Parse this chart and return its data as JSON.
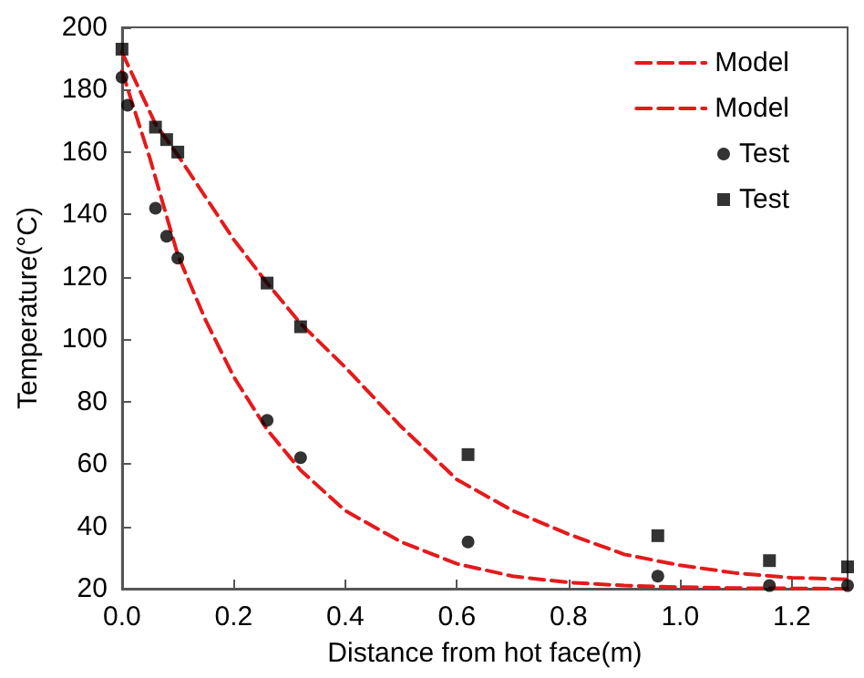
{
  "chart_data": {
    "type": "line",
    "xlabel": "Distance from hot face(m)",
    "ylabel": "Temperature(°C)",
    "xlim": [
      0,
      1.3
    ],
    "xticks": [
      {
        "value": 0,
        "label": "0.0"
      },
      0.2,
      0.4,
      0.6,
      0.8,
      {
        "value": 1,
        "label": "1.0"
      },
      1.2
    ],
    "ylim": [
      20,
      200
    ],
    "yticks": [
      20,
      40,
      60,
      80,
      100,
      120,
      140,
      160,
      180,
      200
    ],
    "grid": false,
    "legend": "top right",
    "series": [
      {
        "name": "Model",
        "color": "#e41a1c",
        "line_style": "dashed",
        "marker": "none",
        "x": [
          0,
          0.05,
          0.1,
          0.15,
          0.2,
          0.26,
          0.32,
          0.4,
          0.5,
          0.6,
          0.7,
          0.8,
          0.9,
          1.0,
          1.1,
          1.2,
          1.3
        ],
        "values": [
          186,
          158,
          127,
          106,
          88,
          71,
          58,
          45,
          35,
          28,
          24,
          22,
          21,
          20.5,
          20.2,
          20.1,
          20
        ]
      },
      {
        "name": "Model",
        "color": "#e41a1c",
        "line_style": "dashed",
        "marker": "none",
        "x": [
          0,
          0.06,
          0.1,
          0.2,
          0.26,
          0.32,
          0.4,
          0.5,
          0.6,
          0.7,
          0.8,
          0.9,
          1.0,
          1.1,
          1.2,
          1.3
        ],
        "values": [
          192,
          169,
          159,
          132,
          118,
          105,
          91,
          72,
          55,
          45,
          37.5,
          31,
          27.5,
          25,
          23.5,
          23
        ]
      },
      {
        "name": "Test",
        "type": "scatter",
        "color": "#000000",
        "marker": "circle",
        "x": [
          0,
          0.01,
          0.06,
          0.08,
          0.1,
          0.26,
          0.32,
          0.62,
          0.96,
          1.16,
          1.3
        ],
        "values": [
          184,
          175,
          142,
          133,
          126,
          74,
          62,
          35,
          24,
          21,
          21
        ]
      },
      {
        "name": "Test",
        "type": "scatter",
        "color": "#000000",
        "marker": "square",
        "x": [
          0,
          0.06,
          0.08,
          0.1,
          0.26,
          0.32,
          0.62,
          0.96,
          1.16,
          1.3
        ],
        "values": [
          193,
          168,
          164,
          160,
          118,
          104,
          63,
          37,
          29,
          27
        ]
      }
    ]
  }
}
